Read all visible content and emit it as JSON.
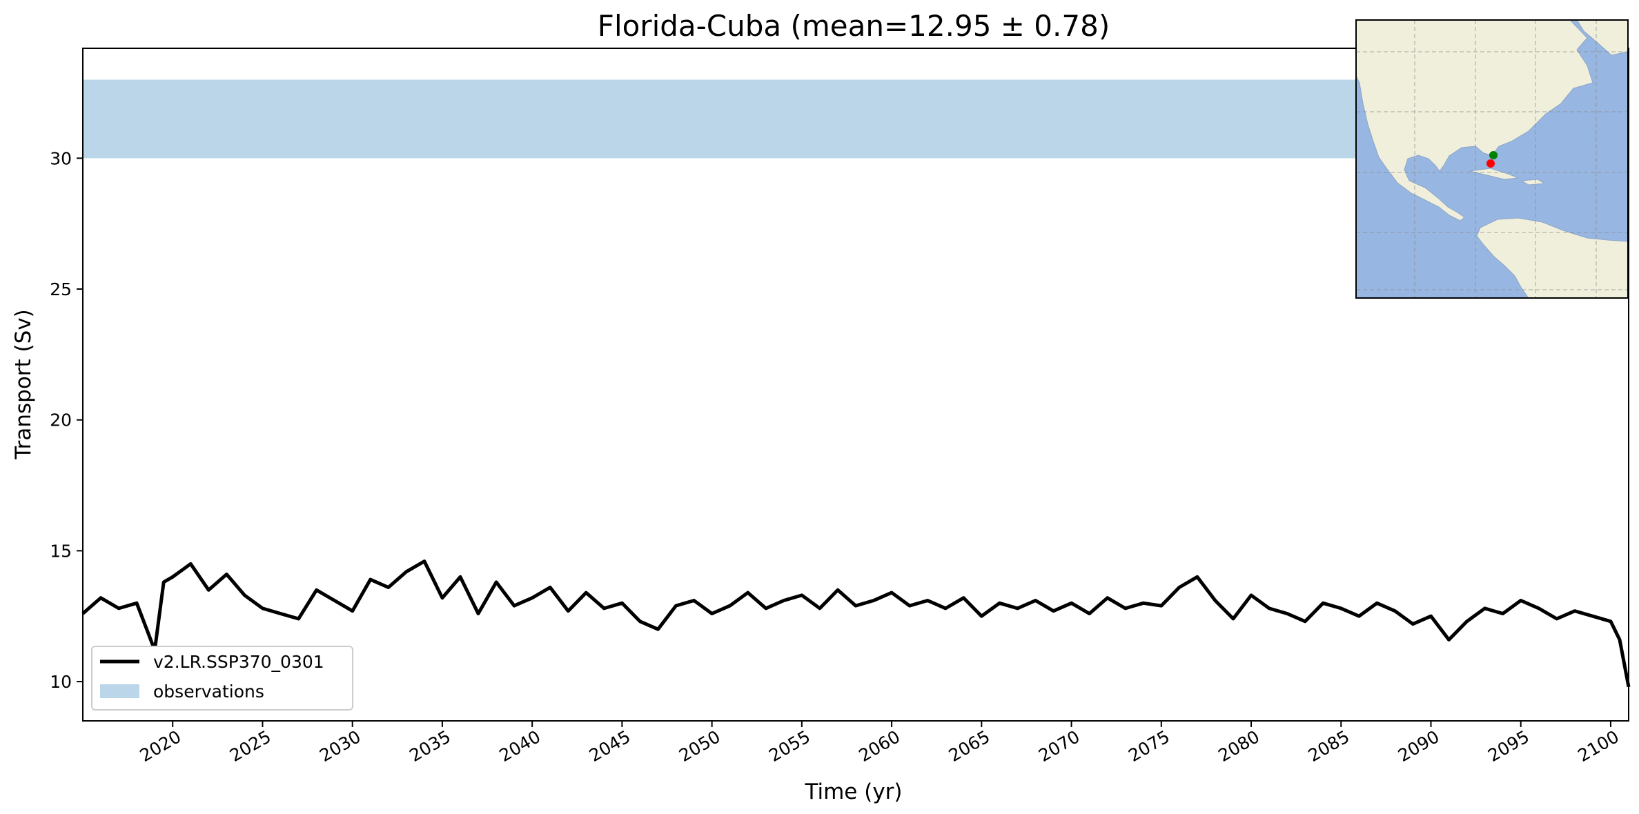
{
  "chart_data": {
    "type": "line",
    "title": "Florida-Cuba (mean=12.95 ± 0.78)",
    "xlabel": "Time (yr)",
    "ylabel": "Transport (Sv)",
    "xlim": [
      2015.0,
      2101.0
    ],
    "ylim": [
      8.5,
      34.2
    ],
    "xticks": [
      "2020",
      "2025",
      "2030",
      "2035",
      "2040",
      "2045",
      "2050",
      "2055",
      "2060",
      "2065",
      "2070",
      "2075",
      "2080",
      "2085",
      "2090",
      "2095",
      "2100"
    ],
    "yticks": [
      "10",
      "15",
      "20",
      "25",
      "30"
    ],
    "grid": false,
    "legend_position": "lower-left",
    "observations": {
      "name": "observations",
      "range": [
        30.0,
        33.0
      ],
      "color": "#bad6e8"
    },
    "series": [
      {
        "name": "v2.LR.SSP370_0301",
        "color": "#000000",
        "x": [
          2015.0,
          2016.0,
          2017.0,
          2018.0,
          2019.0,
          2019.5,
          2020.0,
          2021.0,
          2022.0,
          2023.0,
          2024.0,
          2025.0,
          2026.0,
          2027.0,
          2028.0,
          2029.0,
          2030.0,
          2031.0,
          2032.0,
          2033.0,
          2034.0,
          2035.0,
          2036.0,
          2037.0,
          2038.0,
          2039.0,
          2040.0,
          2041.0,
          2042.0,
          2043.0,
          2044.0,
          2045.0,
          2046.0,
          2047.0,
          2048.0,
          2049.0,
          2050.0,
          2051.0,
          2052.0,
          2053.0,
          2054.0,
          2055.0,
          2056.0,
          2057.0,
          2058.0,
          2059.0,
          2060.0,
          2061.0,
          2062.0,
          2063.0,
          2064.0,
          2065.0,
          2066.0,
          2067.0,
          2068.0,
          2069.0,
          2070.0,
          2071.0,
          2072.0,
          2073.0,
          2074.0,
          2075.0,
          2076.0,
          2077.0,
          2078.0,
          2079.0,
          2080.0,
          2081.0,
          2082.0,
          2083.0,
          2084.0,
          2085.0,
          2086.0,
          2087.0,
          2088.0,
          2089.0,
          2090.0,
          2091.0,
          2092.0,
          2093.0,
          2094.0,
          2095.0,
          2096.0,
          2097.0,
          2098.0,
          2099.0,
          2100.0,
          2100.5,
          2101.0
        ],
        "values": [
          12.6,
          13.2,
          12.8,
          13.0,
          11.2,
          13.8,
          14.0,
          14.5,
          13.5,
          14.1,
          13.3,
          12.8,
          12.6,
          12.4,
          13.5,
          13.1,
          12.7,
          13.9,
          13.6,
          14.2,
          14.6,
          13.2,
          14.0,
          12.6,
          13.8,
          12.9,
          13.2,
          13.6,
          12.7,
          13.4,
          12.8,
          13.0,
          12.3,
          12.0,
          12.9,
          13.1,
          12.6,
          12.9,
          13.4,
          12.8,
          13.1,
          13.3,
          12.8,
          13.5,
          12.9,
          13.1,
          13.4,
          12.9,
          13.1,
          12.8,
          13.2,
          12.5,
          13.0,
          12.8,
          13.1,
          12.7,
          13.0,
          12.6,
          13.2,
          12.8,
          13.0,
          12.9,
          13.6,
          14.0,
          13.1,
          12.4,
          13.3,
          12.8,
          12.6,
          12.3,
          13.0,
          12.8,
          12.5,
          13.0,
          12.7,
          12.2,
          12.5,
          11.6,
          12.3,
          12.8,
          12.6,
          13.1,
          12.8,
          12.4,
          12.7,
          12.5,
          12.3,
          11.6,
          9.8
        ]
      }
    ]
  },
  "inset_map": {
    "title": "",
    "land_color": "#efefdb",
    "ocean_color": "#97b6e1",
    "markers": [
      {
        "name": "start",
        "color": "#008000"
      },
      {
        "name": "end",
        "color": "#ff0000"
      }
    ]
  }
}
